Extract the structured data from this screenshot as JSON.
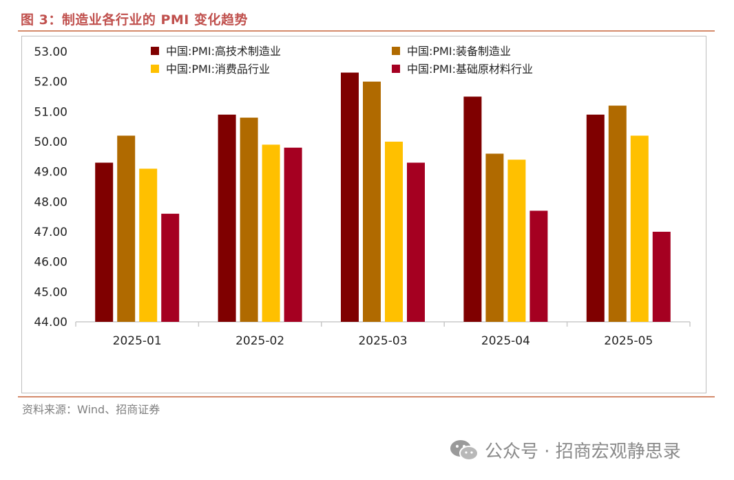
{
  "figure": {
    "title": "图 3：制造业各行业的 PMI 变化趋势",
    "source": "资料来源：Wind、招商证券",
    "watermark": "公众号 · 招商宏观静思录"
  },
  "chart_data": {
    "type": "bar",
    "title": "",
    "xlabel": "",
    "ylabel": "",
    "ylim": [
      44,
      53
    ],
    "yticks": [
      "44.00",
      "45.00",
      "46.00",
      "47.00",
      "48.00",
      "49.00",
      "50.00",
      "51.00",
      "52.00",
      "53.00"
    ],
    "grid": false,
    "legend_position": "top",
    "categories": [
      "2025-01",
      "2025-02",
      "2025-03",
      "2025-04",
      "2025-05"
    ],
    "series": [
      {
        "name": "中国:PMI:高技术制造业",
        "color": "#7f0000",
        "values": [
          49.3,
          50.9,
          52.3,
          51.5,
          50.9
        ]
      },
      {
        "name": "中国:PMI:装备制造业",
        "color": "#b06a00",
        "values": [
          50.2,
          50.8,
          52.0,
          49.6,
          51.2
        ]
      },
      {
        "name": "中国:PMI:消费品行业",
        "color": "#ffc000",
        "values": [
          49.1,
          49.9,
          50.0,
          49.4,
          50.2
        ]
      },
      {
        "name": "中国:PMI:基础原材料行业",
        "color": "#a50021",
        "values": [
          47.6,
          49.8,
          49.3,
          47.7,
          47.0
        ]
      }
    ]
  }
}
